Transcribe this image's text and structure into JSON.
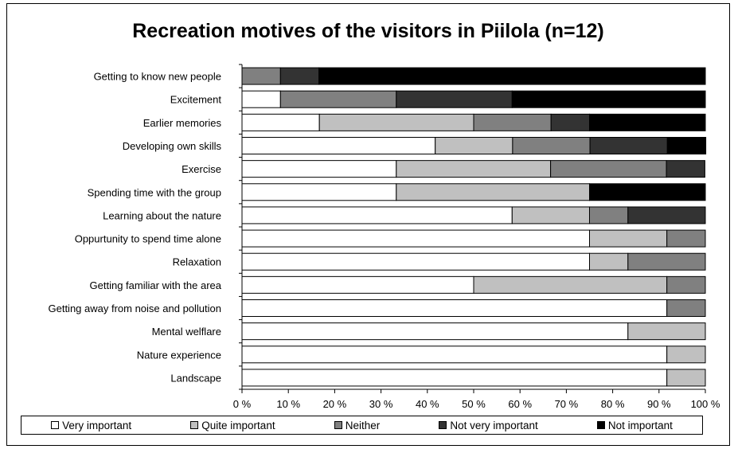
{
  "chart_data": {
    "type": "bar",
    "orientation": "horizontal",
    "stacked": "percent",
    "title": "Recreation motives of the visitors in Piilola (n=12)",
    "categories": [
      "Getting to know new people",
      "Excitement",
      "Earlier memories",
      "Developing own skills",
      "Exercise",
      "Spending time with the group",
      "Learning about the nature",
      "Oppurtunity to spend time alone",
      "Relaxation",
      "Getting familiar with the area",
      "Getting away from noise and pollution",
      "Mental welflare",
      "Nature experience",
      "Landscape"
    ],
    "series": [
      {
        "name": "Very important",
        "color": "#ffffff",
        "values": [
          0,
          8.3,
          16.7,
          41.7,
          33.3,
          33.3,
          58.3,
          75,
          75,
          50,
          91.7,
          83.3,
          91.7,
          91.7
        ]
      },
      {
        "name": "Quite important",
        "color": "#c0c0c0",
        "values": [
          0,
          0,
          33.3,
          16.7,
          33.3,
          41.7,
          16.7,
          16.7,
          8.3,
          41.7,
          0,
          16.7,
          8.3,
          8.3
        ]
      },
      {
        "name": "Neither",
        "color": "#808080",
        "values": [
          8.3,
          25,
          16.7,
          16.7,
          25,
          0,
          8.3,
          8.3,
          16.7,
          8.3,
          8.3,
          0,
          0,
          0
        ]
      },
      {
        "name": "Not very important",
        "color": "#333333",
        "values": [
          8.3,
          25,
          8.3,
          16.7,
          8.3,
          0,
          16.7,
          0,
          0,
          0,
          0,
          0,
          0,
          0
        ]
      },
      {
        "name": "Not important",
        "color": "#000000",
        "values": [
          83.4,
          41.7,
          25,
          8.3,
          0,
          25,
          0,
          0,
          0,
          0,
          0,
          0,
          0,
          0
        ]
      }
    ],
    "x_ticks": [
      "0 %",
      "10 %",
      "20 %",
      "30 %",
      "40 %",
      "50 %",
      "60 %",
      "70 %",
      "80 %",
      "90 %",
      "100 %"
    ],
    "xlim": [
      0,
      100
    ],
    "grid": false,
    "legend_position": "bottom"
  }
}
